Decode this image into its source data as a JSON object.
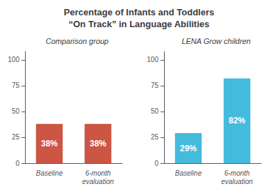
{
  "title": "Percentage of Infants and Toddlers\n“On Track” in Language Abilities",
  "chart_data": [
    {
      "type": "bar",
      "subtitle": "Comparison group",
      "categories": [
        "Baseline",
        "6-month\nevaluation"
      ],
      "values": [
        38,
        38
      ],
      "value_labels": [
        "38%",
        "38%"
      ],
      "color": "#CC5544",
      "data_labels": true,
      "ylim": [
        0,
        108
      ],
      "yticks": [
        0,
        25,
        50,
        75,
        100
      ],
      "grid": false
    },
    {
      "type": "bar",
      "subtitle": "LENA Grow children",
      "categories": [
        "Baseline",
        "6-month\nevaluation"
      ],
      "values": [
        29,
        82
      ],
      "value_labels": [
        "29%",
        "82%"
      ],
      "color": "#44BBDD",
      "data_labels": true,
      "ylim": [
        0,
        108
      ],
      "yticks": [
        0,
        25,
        50,
        75,
        100
      ],
      "grid": false
    }
  ]
}
